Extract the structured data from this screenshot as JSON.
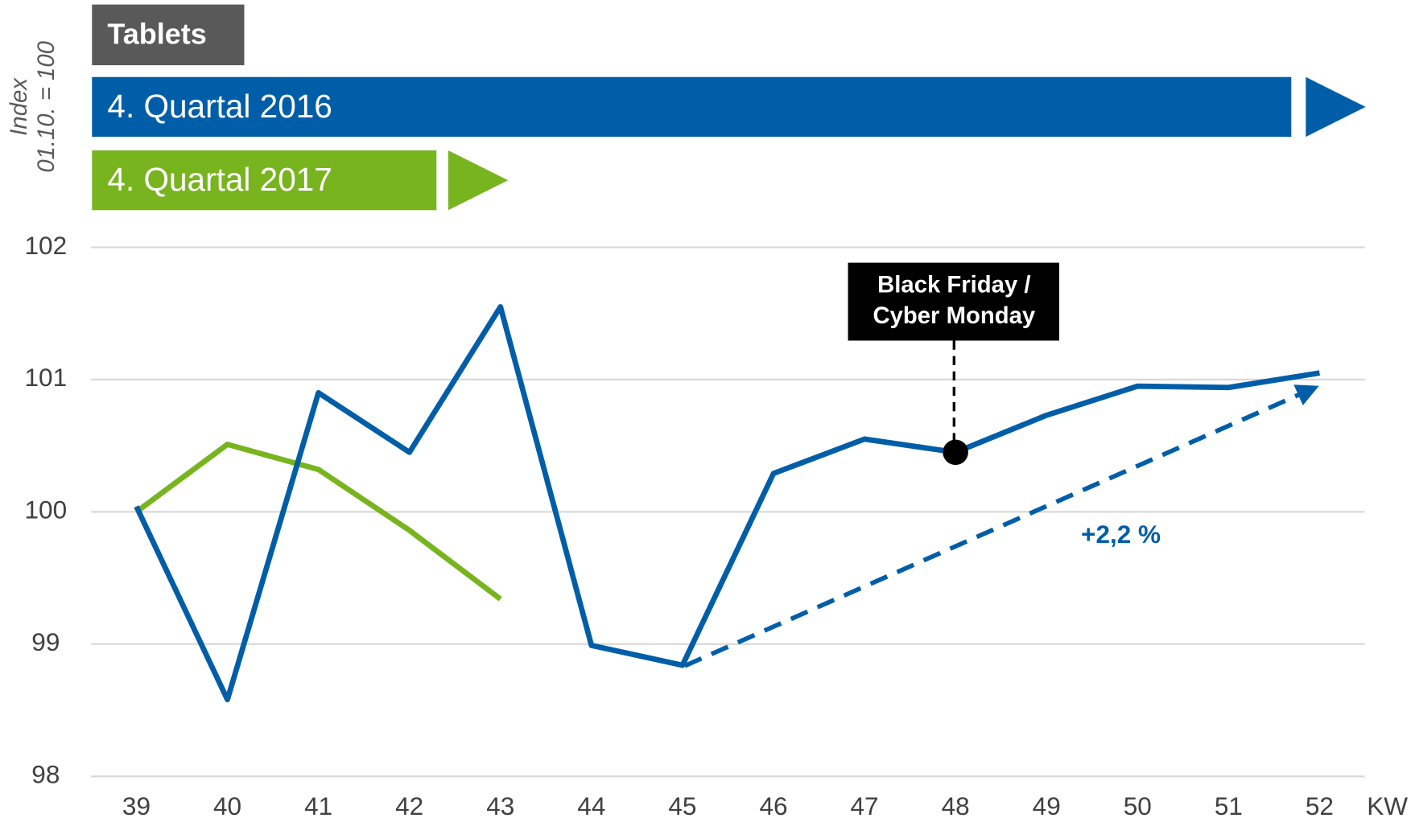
{
  "chart_data": {
    "type": "line",
    "title": "Tablets",
    "ylabel": [
      "Index",
      "01.10. = 100"
    ],
    "xlabel": "KW",
    "categories": [
      "39",
      "40",
      "41",
      "42",
      "43",
      "44",
      "45",
      "46",
      "47",
      "48",
      "49",
      "50",
      "51",
      "52"
    ],
    "series": [
      {
        "name": "4. Quartal 2016",
        "color": "#005ea8",
        "values": [
          100.04,
          98.58,
          100.9,
          100.45,
          101.55,
          98.99,
          98.84,
          100.29,
          100.55,
          100.45,
          100.73,
          100.95,
          100.94,
          101.05
        ]
      },
      {
        "name": "4. Quartal 2017",
        "color": "#78b41e",
        "values": [
          100.0,
          100.51,
          100.32,
          99.86,
          99.34,
          null,
          null,
          null,
          null,
          null,
          null,
          null,
          null,
          null
        ]
      }
    ],
    "ylim": [
      98,
      102
    ],
    "yticks": [
      98,
      99,
      100,
      101,
      102
    ],
    "grid": true,
    "annotations": {
      "event": [
        "Black Friday /",
        "Cyber Monday"
      ],
      "trend": "+2,2 %"
    }
  }
}
